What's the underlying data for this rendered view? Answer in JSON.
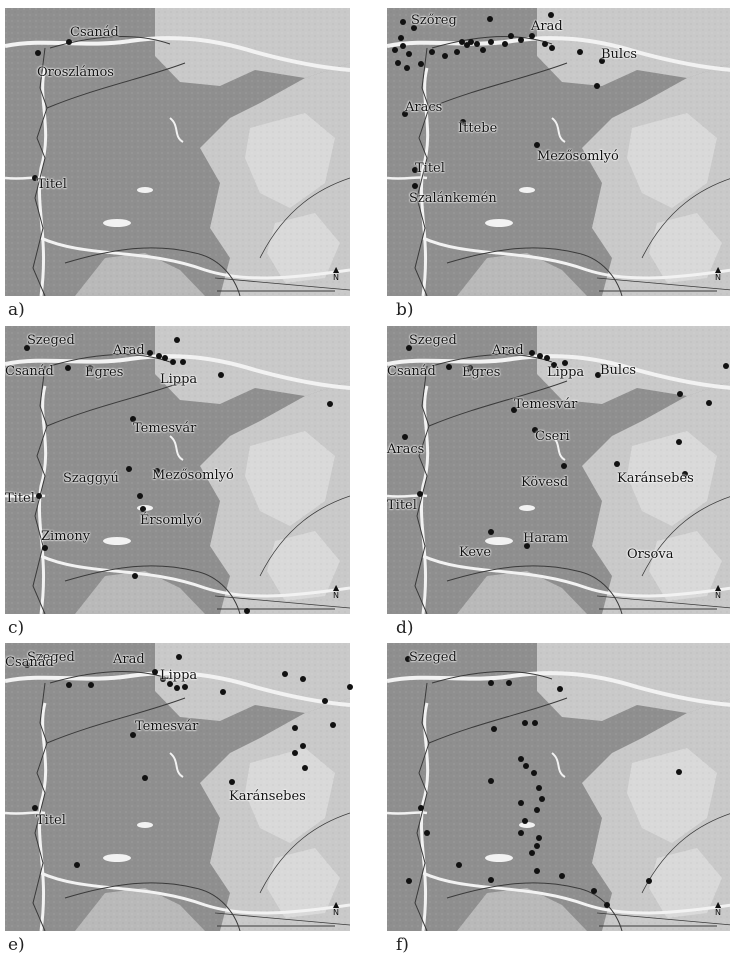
{
  "panels": [
    {
      "caption": "a)",
      "places": [
        "Csanád",
        "Oroszlámos",
        "Titel"
      ],
      "dot_count": 3
    },
    {
      "caption": "b)",
      "places": [
        "Szőreg",
        "Arad",
        "Bulcs",
        "Aracs",
        "Ittebe",
        "Mezősomlyó",
        "Titel",
        "Szalánkemén"
      ],
      "dot_count": 34
    },
    {
      "caption": "c)",
      "places": [
        "Szeged",
        "Arad",
        "Csanád",
        "Egres",
        "Lippa",
        "Temesvár",
        "Szaggyú",
        "Mezősomlyó",
        "Titel",
        "Érsomlyó",
        "Zimony"
      ],
      "dot_count": 20
    },
    {
      "caption": "d)",
      "places": [
        "Szeged",
        "Arad",
        "Csanád",
        "Egres",
        "Lippa",
        "Bulcs",
        "Temesvár",
        "Cseri",
        "Aracs",
        "Kövesd",
        "Karánsebes",
        "Titel",
        "Haram",
        "Keve",
        "Orsova"
      ],
      "dot_count": 22
    },
    {
      "caption": "e)",
      "places": [
        "Szeged",
        "Arad",
        "Csanád",
        "Lippa",
        "Temesvár",
        "Karánsebes",
        "Titel"
      ],
      "dot_count": 24
    },
    {
      "caption": "f)",
      "places": [
        "Szeged"
      ],
      "dot_count": 31
    }
  ],
  "map_colors": {
    "paper": "#ffffff",
    "plain": "#8f8f8f",
    "hills": "#c9c9c9",
    "hills_light": "#d9d9d9",
    "river": "#f2f2f2",
    "border": "#3a3a3a",
    "dot": "#111111"
  },
  "north_arrow": "N"
}
